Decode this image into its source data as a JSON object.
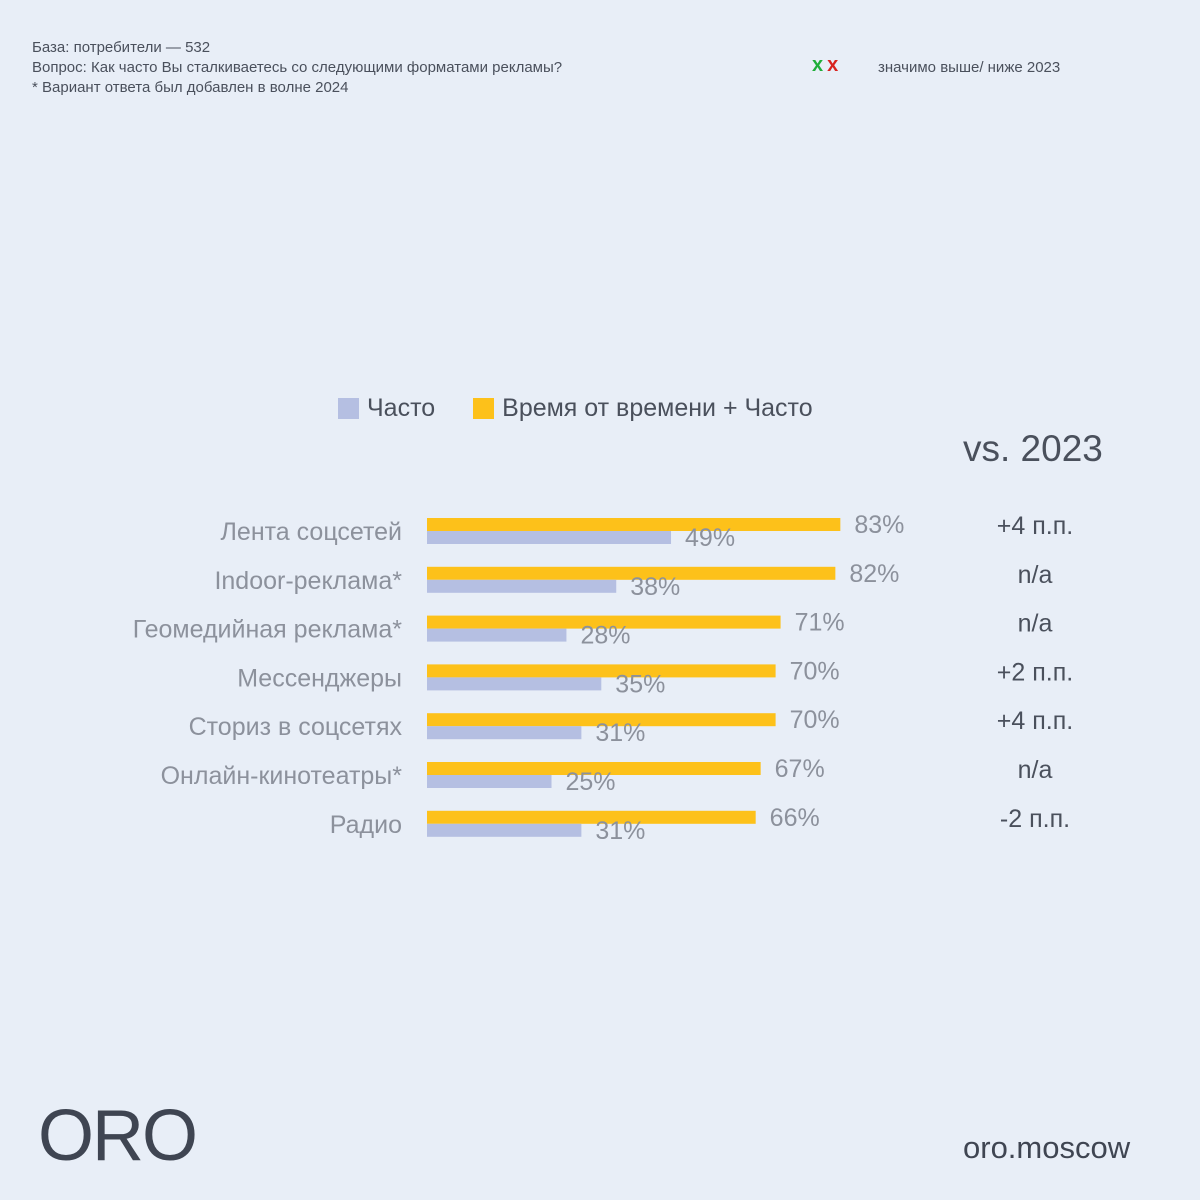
{
  "notes": {
    "base": "База: потребители — 532",
    "question": "Вопрос: Как часто Вы сталкиваетесь со следующими форматами рекламы?",
    "footnote": "* Вариант ответа был добавлен в волне 2024"
  },
  "significance": {
    "up_mark": "x",
    "down_mark": "x",
    "text": "значимо выше/ ниже 2023",
    "up_color": "#1fae3a",
    "down_color": "#d8231f"
  },
  "vs_title": "vs. 2023",
  "brand": {
    "logo_text": "ORO",
    "site": "oro.moscow"
  },
  "chart_data": {
    "type": "bar",
    "orientation": "horizontal",
    "categories": [
      "Лента соцсетей",
      "Indoor-реклама*",
      "Геомедийная реклама*",
      "Мессенджеры",
      "Сториз в соцсетях",
      "Онлайн-кинотеатры*",
      "Радио"
    ],
    "series": [
      {
        "name": "Время от времени + Часто",
        "color": "#fdc11a",
        "values": [
          83,
          82,
          71,
          70,
          70,
          67,
          66
        ]
      },
      {
        "name": "Часто",
        "color": "#b5bfe2",
        "values": [
          49,
          38,
          28,
          35,
          31,
          25,
          31
        ]
      }
    ],
    "value_suffix": "%",
    "vs_2023": [
      "+4 п.п.",
      "n/a",
      "n/a",
      "+2 п.п.",
      "+4 п.п.",
      "n/a",
      "-2 п.п."
    ],
    "legend": [
      "Часто",
      "Время от времени + Часто"
    ],
    "legend_position": "top",
    "xlim": [
      0,
      100
    ],
    "grid": false
  }
}
